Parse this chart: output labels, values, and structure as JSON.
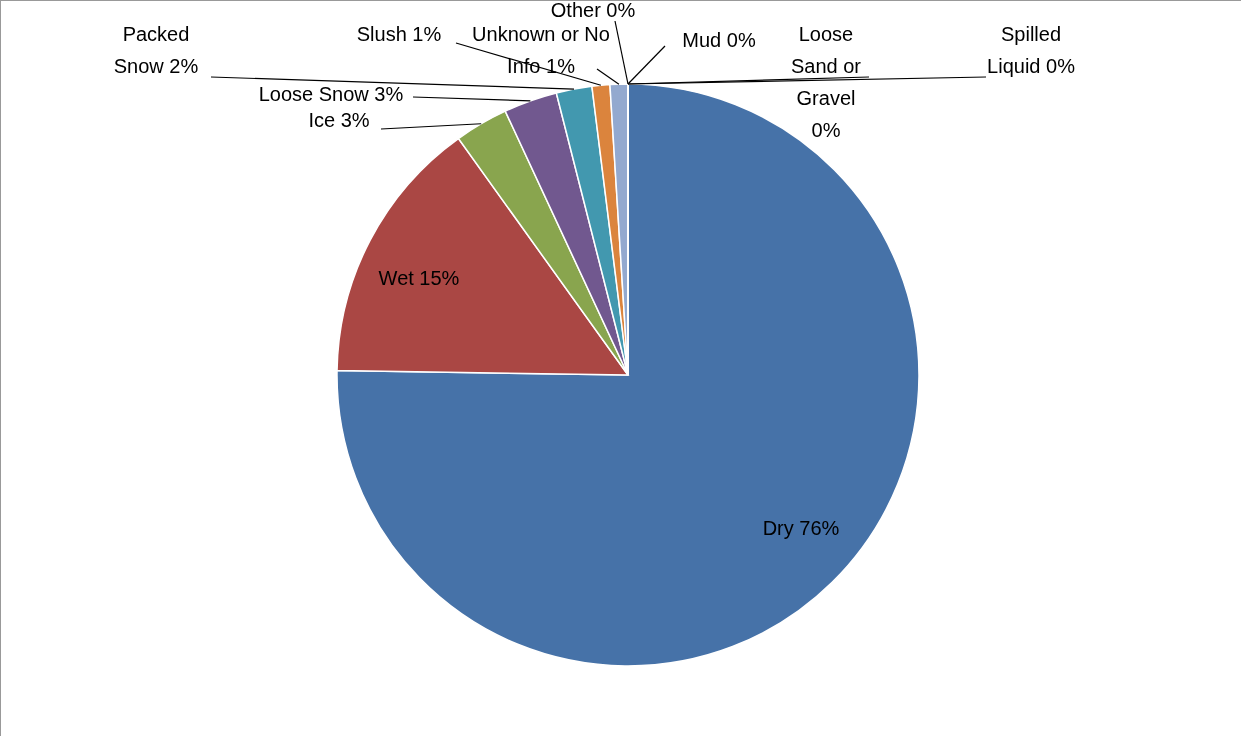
{
  "chart_data": {
    "type": "pie",
    "categories": [
      "Dry",
      "Wet",
      "Ice",
      "Loose Snow",
      "Packed Snow",
      "Slush",
      "Unknown or No Info",
      "Other",
      "Mud",
      "Loose Sand or Gravel",
      "Spilled Liquid"
    ],
    "values": [
      76,
      15,
      3,
      3,
      2,
      1,
      1,
      0,
      0,
      0,
      0
    ],
    "value_labels": [
      "76%",
      "15%",
      "3%",
      "3%",
      "2%",
      "1%",
      "1%",
      "0%",
      "0%",
      "0%",
      "0%"
    ],
    "colors": [
      "#4672a8",
      "#aa4744",
      "#89a54e",
      "#71588f",
      "#4298af",
      "#db843d",
      "#93a9cf",
      "#d19392",
      "#b9cd96",
      "#a99bbd",
      "#91c3d5"
    ]
  }
}
